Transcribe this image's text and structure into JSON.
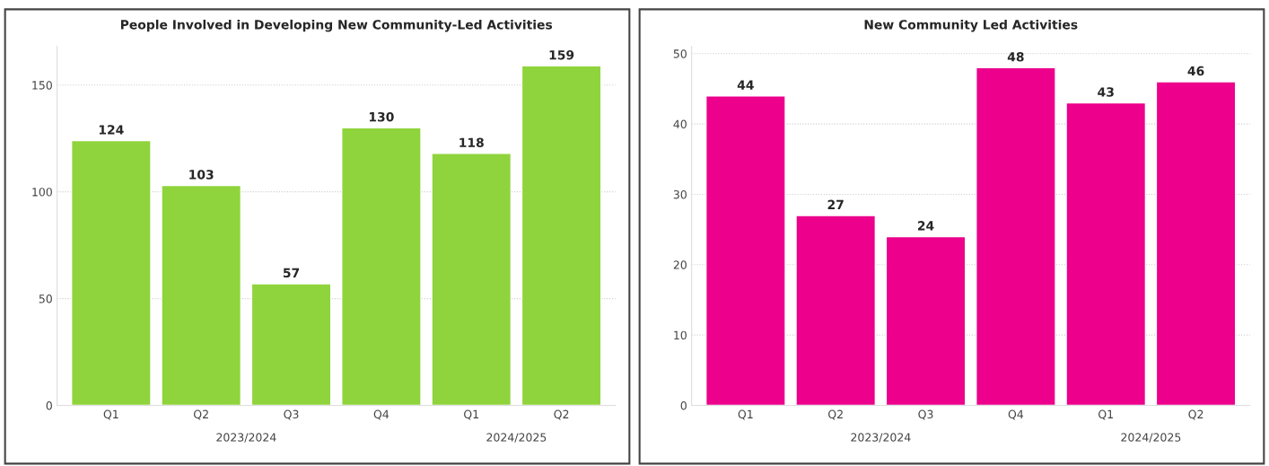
{
  "chart_data": [
    {
      "type": "bar",
      "title": "People Involved in Developing New Community-Led Activities",
      "categories": [
        "Q1",
        "Q2",
        "Q3",
        "Q4",
        "Q1",
        "Q2"
      ],
      "values": [
        124,
        103,
        57,
        130,
        118,
        159
      ],
      "color": "#8fd43c",
      "ylim": [
        0,
        168
      ],
      "yticks": [
        0,
        50,
        100,
        150
      ],
      "grid": "y",
      "data_labels": true,
      "annotations": [
        "2023/2024",
        "2024/2025"
      ]
    },
    {
      "type": "bar",
      "title": "New Community Led Activities",
      "categories": [
        "Q1",
        "Q2",
        "Q3",
        "Q4",
        "Q1",
        "Q2"
      ],
      "values": [
        44,
        27,
        24,
        48,
        43,
        46
      ],
      "color": "#ec008c",
      "ylim": [
        0,
        51
      ],
      "yticks": [
        0,
        10,
        20,
        30,
        40,
        50
      ],
      "grid": "y",
      "data_labels": true,
      "annotations": [
        "2023/2024",
        "2024/2025"
      ]
    }
  ]
}
